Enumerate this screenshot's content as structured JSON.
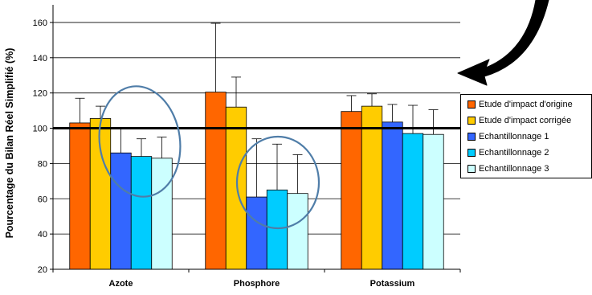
{
  "chart_data": {
    "type": "bar",
    "categories": [
      "Azote",
      "Phosphore",
      "Potassium"
    ],
    "ylabel": "Pourcentage du Bilan Réel Simplifié (%)",
    "ylim": [
      20,
      170
    ],
    "yticks": [
      20,
      40,
      60,
      80,
      100,
      120,
      140,
      160
    ],
    "reference_line": 100,
    "grid": true,
    "legend_position": "right",
    "series": [
      {
        "name": "Etude d'impact d'origine",
        "color": "#FF6600",
        "values": [
          103,
          120.5,
          109.5
        ],
        "error_plus": [
          14,
          39,
          9
        ]
      },
      {
        "name": "Etude d'impact corrigée",
        "color": "#FFCC00",
        "values": [
          105.5,
          112,
          112.5
        ],
        "error_plus": [
          7,
          17,
          7
        ]
      },
      {
        "name": "Echantillonnage 1",
        "color": "#3366FF",
        "values": [
          86,
          61,
          103.5
        ],
        "error_plus": [
          14,
          33,
          10
        ]
      },
      {
        "name": "Echantillonnage 2",
        "color": "#00CCFF",
        "values": [
          84,
          65,
          97
        ],
        "error_plus": [
          10,
          26,
          16
        ]
      },
      {
        "name": "Echantillonnage 3",
        "color": "#CCFFFF",
        "values": [
          83,
          63,
          96.5
        ],
        "error_plus": [
          12,
          22,
          14
        ]
      }
    ],
    "annotations": [
      "ellipse around Azote sampling bars",
      "ellipse around Phosphore sampling bars",
      "curved arrow pointing to legend"
    ]
  }
}
